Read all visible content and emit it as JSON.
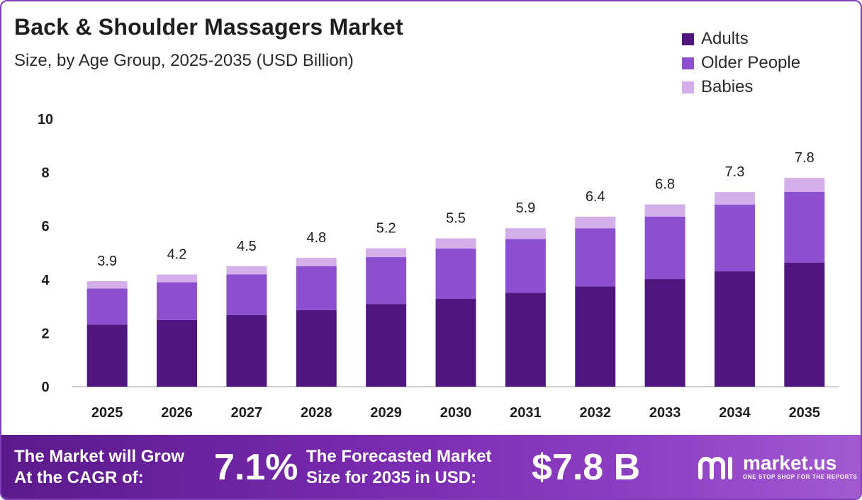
{
  "header": {
    "title": "Back & Shoulder Massagers Market",
    "subtitle": "Size, by Age Group, 2025-2035 (USD Billion)"
  },
  "legend": [
    {
      "label": "Adults",
      "color": "#4f1680"
    },
    {
      "label": "Older People",
      "color": "#8b4fcf"
    },
    {
      "label": "Babies",
      "color": "#d4aee8"
    }
  ],
  "chart_data": {
    "type": "bar",
    "stacked": true,
    "categories": [
      "2025",
      "2026",
      "2027",
      "2028",
      "2029",
      "2030",
      "2031",
      "2032",
      "2033",
      "2034",
      "2035"
    ],
    "series": [
      {
        "name": "Adults",
        "color": "#4f1680",
        "values": [
          2.32,
          2.49,
          2.68,
          2.86,
          3.09,
          3.29,
          3.51,
          3.75,
          4.02,
          4.31,
          4.63
        ]
      },
      {
        "name": "Older People",
        "color": "#8b4fcf",
        "values": [
          1.35,
          1.41,
          1.52,
          1.64,
          1.75,
          1.87,
          2.01,
          2.17,
          2.33,
          2.49,
          2.65
        ]
      },
      {
        "name": "Babies",
        "color": "#d4aee8",
        "values": [
          0.27,
          0.29,
          0.3,
          0.31,
          0.33,
          0.38,
          0.4,
          0.43,
          0.46,
          0.47,
          0.52
        ]
      }
    ],
    "totals": [
      "3.9",
      "4.2",
      "4.5",
      "4.8",
      "5.2",
      "5.5",
      "5.9",
      "6.4",
      "6.8",
      "7.3",
      "7.8"
    ],
    "y_ticks": [
      "0",
      "2",
      "4",
      "6",
      "8",
      "10"
    ],
    "ylim": [
      0,
      10
    ],
    "grid": false,
    "legend_position": "top-right"
  },
  "footer": {
    "cagr_text_line1": "The Market will Grow",
    "cagr_text_line2": "At the CAGR of:",
    "cagr_value": "7.1%",
    "forecast_text_line1": "The Forecasted Market",
    "forecast_text_line2": "Size for 2035 in USD:",
    "forecast_value": "$7.8 B",
    "brand_name": "market.us",
    "brand_tagline": "ONE STOP SHOP FOR THE REPORTS"
  }
}
